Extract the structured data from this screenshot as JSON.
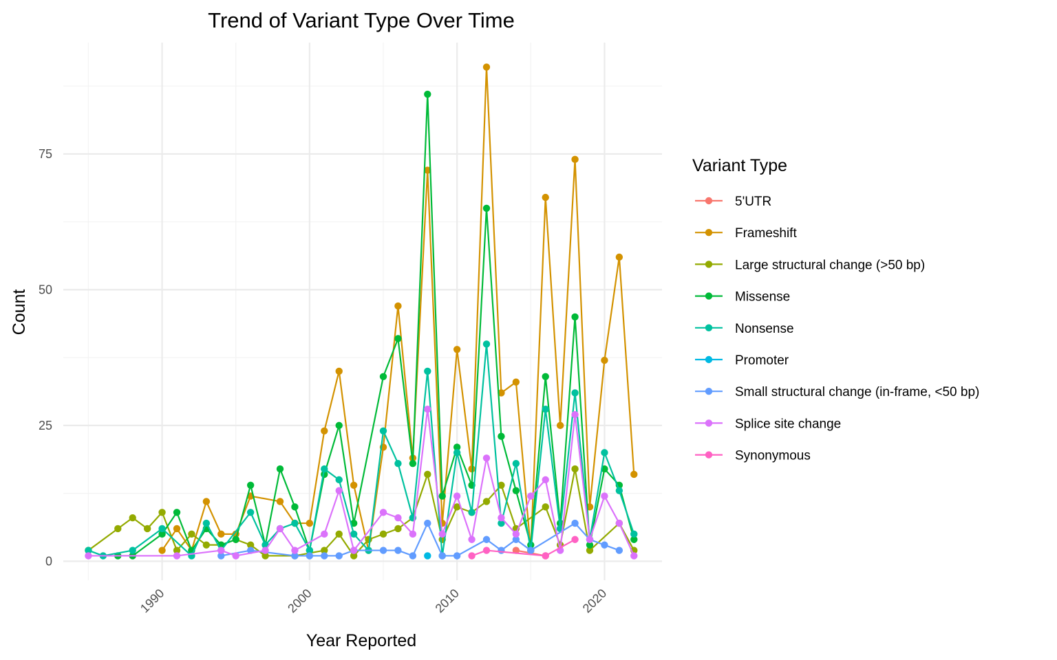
{
  "chart_data": {
    "type": "line",
    "title": "Trend of Variant Type Over Time",
    "xlabel": "Year Reported",
    "ylabel": "Count",
    "xlim": [
      1983.3,
      2023.9
    ],
    "ylim": [
      -3.5,
      95.5
    ],
    "x_ticks": [
      1990,
      2000,
      2010,
      2020
    ],
    "y_ticks": [
      0,
      25,
      50,
      75
    ],
    "x_minor": [
      1985,
      1995,
      2005,
      2015
    ],
    "y_minor": [
      12.5,
      37.5,
      62.5,
      87.5
    ],
    "grid": true,
    "legend": {
      "title": "Variant Type",
      "position": "right"
    },
    "series": [
      {
        "name": "5'UTR",
        "color": "#F8766D",
        "points": [
          [
            2014,
            2
          ],
          [
            2016,
            1
          ]
        ]
      },
      {
        "name": "Frameshift",
        "color": "#D39200",
        "points": [
          [
            1990,
            2
          ],
          [
            1991,
            6
          ],
          [
            1992,
            2
          ],
          [
            1993,
            11
          ],
          [
            1994,
            5
          ],
          [
            1995,
            5
          ],
          [
            1996,
            12
          ],
          [
            1998,
            11
          ],
          [
            1999,
            7
          ],
          [
            2000,
            7
          ],
          [
            2001,
            24
          ],
          [
            2002,
            35
          ],
          [
            2003,
            14
          ],
          [
            2004,
            2
          ],
          [
            2005,
            21
          ],
          [
            2006,
            47
          ],
          [
            2007,
            19
          ],
          [
            2008,
            72
          ],
          [
            2009,
            7
          ],
          [
            2010,
            39
          ],
          [
            2011,
            17
          ],
          [
            2012,
            91
          ],
          [
            2013,
            31
          ],
          [
            2014,
            33
          ],
          [
            2015,
            2
          ],
          [
            2016,
            67
          ],
          [
            2017,
            25
          ],
          [
            2018,
            74
          ],
          [
            2019,
            10
          ],
          [
            2020,
            37
          ],
          [
            2021,
            56
          ],
          [
            2022,
            16
          ]
        ]
      },
      {
        "name": "Large structural change (>50 bp)",
        "color": "#93AA00",
        "points": [
          [
            1985,
            2
          ],
          [
            1987,
            6
          ],
          [
            1988,
            8
          ],
          [
            1989,
            6
          ],
          [
            1990,
            9
          ],
          [
            1991,
            2
          ],
          [
            1992,
            5
          ],
          [
            1993,
            3
          ],
          [
            1994,
            3
          ],
          [
            1995,
            4
          ],
          [
            1996,
            3
          ],
          [
            1997,
            1
          ],
          [
            1999,
            1
          ],
          [
            2001,
            2
          ],
          [
            2002,
            5
          ],
          [
            2003,
            1
          ],
          [
            2004,
            4
          ],
          [
            2005,
            5
          ],
          [
            2006,
            6
          ],
          [
            2007,
            8
          ],
          [
            2008,
            16
          ],
          [
            2009,
            4
          ],
          [
            2010,
            10
          ],
          [
            2011,
            9
          ],
          [
            2012,
            11
          ],
          [
            2013,
            14
          ],
          [
            2014,
            6
          ],
          [
            2016,
            10
          ],
          [
            2017,
            3
          ],
          [
            2018,
            17
          ],
          [
            2019,
            2
          ],
          [
            2021,
            7
          ],
          [
            2022,
            2
          ]
        ]
      },
      {
        "name": "Missense",
        "color": "#00BA38",
        "points": [
          [
            1987,
            1
          ],
          [
            1988,
            1
          ],
          [
            1990,
            5
          ],
          [
            1991,
            9
          ],
          [
            1992,
            2
          ],
          [
            1993,
            6
          ],
          [
            1994,
            3
          ],
          [
            1995,
            4
          ],
          [
            1996,
            14
          ],
          [
            1997,
            3
          ],
          [
            1998,
            17
          ],
          [
            1999,
            10
          ],
          [
            2000,
            2
          ],
          [
            2001,
            16
          ],
          [
            2002,
            25
          ],
          [
            2003,
            7
          ],
          [
            2005,
            34
          ],
          [
            2006,
            41
          ],
          [
            2007,
            18
          ],
          [
            2008,
            86
          ],
          [
            2009,
            12
          ],
          [
            2010,
            21
          ],
          [
            2011,
            14
          ],
          [
            2012,
            65
          ],
          [
            2013,
            23
          ],
          [
            2014,
            13
          ],
          [
            2015,
            3
          ],
          [
            2016,
            34
          ],
          [
            2017,
            7
          ],
          [
            2018,
            45
          ],
          [
            2019,
            3
          ],
          [
            2020,
            17
          ],
          [
            2021,
            14
          ],
          [
            2022,
            4
          ]
        ]
      },
      {
        "name": "Nonsense",
        "color": "#00C19F",
        "points": [
          [
            1985,
            2
          ],
          [
            1986,
            1
          ],
          [
            1988,
            2
          ],
          [
            1990,
            6
          ],
          [
            1992,
            1
          ],
          [
            1993,
            7
          ],
          [
            1994,
            2
          ],
          [
            1996,
            9
          ],
          [
            1997,
            3
          ],
          [
            1998,
            6
          ],
          [
            1999,
            7
          ],
          [
            2000,
            2
          ],
          [
            2001,
            17
          ],
          [
            2002,
            15
          ],
          [
            2003,
            5
          ],
          [
            2004,
            2
          ],
          [
            2005,
            24
          ],
          [
            2006,
            18
          ],
          [
            2007,
            8
          ],
          [
            2008,
            35
          ],
          [
            2009,
            1
          ],
          [
            2010,
            20
          ],
          [
            2011,
            9
          ],
          [
            2012,
            40
          ],
          [
            2013,
            7
          ],
          [
            2014,
            18
          ],
          [
            2015,
            2
          ],
          [
            2016,
            28
          ],
          [
            2017,
            6
          ],
          [
            2018,
            31
          ],
          [
            2019,
            4
          ],
          [
            2020,
            20
          ],
          [
            2021,
            13
          ],
          [
            2022,
            5
          ]
        ]
      },
      {
        "name": "Promoter",
        "color": "#00B9E3",
        "points": [
          [
            2008,
            1
          ]
        ]
      },
      {
        "name": "Small structural change (in-frame, <50 bp)",
        "color": "#619CFF",
        "points": [
          [
            1994,
            1
          ],
          [
            1996,
            2
          ],
          [
            1999,
            1
          ],
          [
            2000,
            1
          ],
          [
            2001,
            1
          ],
          [
            2002,
            1
          ],
          [
            2003,
            2
          ],
          [
            2005,
            2
          ],
          [
            2006,
            2
          ],
          [
            2007,
            1
          ],
          [
            2008,
            7
          ],
          [
            2009,
            1
          ],
          [
            2010,
            1
          ],
          [
            2012,
            4
          ],
          [
            2013,
            2
          ],
          [
            2014,
            4
          ],
          [
            2015,
            2
          ],
          [
            2018,
            7
          ],
          [
            2019,
            4
          ],
          [
            2020,
            3
          ],
          [
            2021,
            2
          ]
        ]
      },
      {
        "name": "Splice site change",
        "color": "#DB72FB",
        "points": [
          [
            1985,
            1
          ],
          [
            1991,
            1
          ],
          [
            1994,
            2
          ],
          [
            1995,
            1
          ],
          [
            1997,
            2
          ],
          [
            1998,
            6
          ],
          [
            1999,
            2
          ],
          [
            2001,
            5
          ],
          [
            2002,
            13
          ],
          [
            2003,
            2
          ],
          [
            2005,
            9
          ],
          [
            2006,
            8
          ],
          [
            2007,
            5
          ],
          [
            2008,
            28
          ],
          [
            2009,
            5
          ],
          [
            2010,
            12
          ],
          [
            2011,
            4
          ],
          [
            2012,
            19
          ],
          [
            2013,
            8
          ],
          [
            2014,
            5
          ],
          [
            2015,
            12
          ],
          [
            2016,
            15
          ],
          [
            2017,
            2
          ],
          [
            2018,
            27
          ],
          [
            2019,
            4
          ],
          [
            2020,
            12
          ],
          [
            2021,
            7
          ],
          [
            2022,
            1
          ]
        ]
      },
      {
        "name": "Synonymous",
        "color": "#FF61C3",
        "points": [
          [
            2011,
            1
          ],
          [
            2012,
            2
          ],
          [
            2016,
            1
          ],
          [
            2018,
            4
          ]
        ]
      }
    ]
  }
}
